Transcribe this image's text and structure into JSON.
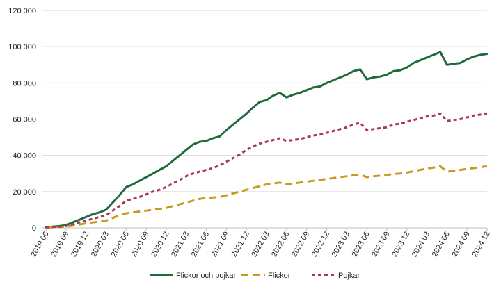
{
  "chart_data": {
    "type": "line",
    "title": "",
    "xlabel": "",
    "ylabel": "",
    "ylim": [
      0,
      120000
    ],
    "yticks": [
      0,
      20000,
      40000,
      60000,
      80000,
      100000,
      120000
    ],
    "ytick_labels": [
      "0",
      "20 000",
      "40 000",
      "60 000",
      "80 000",
      "100 000",
      "120 000"
    ],
    "grid": "horizontal",
    "legend_position": "bottom",
    "x": [
      "2019 06",
      "2019 07",
      "2019 08",
      "2019 09",
      "2019 10",
      "2019 11",
      "2019 12",
      "2020 01",
      "2020 02",
      "2020 03",
      "2020 04",
      "2020 05",
      "2020 06",
      "2020 07",
      "2020 08",
      "2020 09",
      "2020 10",
      "2020 11",
      "2020 12",
      "2021 01",
      "2021 02",
      "2021 03",
      "2021 04",
      "2021 05",
      "2021 06",
      "2021 07",
      "2021 08",
      "2021 09",
      "2021 10",
      "2021 11",
      "2021 12",
      "2022 01",
      "2022 02",
      "2022 03",
      "2022 04",
      "2022 05",
      "2022 06",
      "2022 07",
      "2022 08",
      "2022 09",
      "2022 10",
      "2022 11",
      "2022 12",
      "2023 01",
      "2023 02",
      "2023 03",
      "2023 04",
      "2023 05",
      "2023 06",
      "2023 07",
      "2023 08",
      "2023 09",
      "2023 10",
      "2023 11",
      "2023 12",
      "2024 01",
      "2024 02",
      "2024 03",
      "2024 04",
      "2024 05",
      "2024 06",
      "2024 07",
      "2024 08",
      "2024 09",
      "2024 10",
      "2024 11",
      "2024 12"
    ],
    "xtick_labels": [
      "2019 06",
      "2019 09",
      "2019 12",
      "2020 03",
      "2020 06",
      "2020 09",
      "2020 12",
      "2021 03",
      "2021 06",
      "2021 09",
      "2021 12",
      "2022 03",
      "2022 06",
      "2022 09",
      "2022 12",
      "2023 03",
      "2023 06",
      "2023 09",
      "2023 12",
      "2024 03",
      "2024 06",
      "2024 09",
      "2024 12"
    ],
    "series": [
      {
        "name": "Flickor och pojkar",
        "color": "#1e6b3c",
        "dash": "solid",
        "values": [
          500,
          700,
          1000,
          1500,
          3000,
          4500,
          6000,
          7500,
          8500,
          10000,
          14000,
          18000,
          22500,
          24000,
          26000,
          28000,
          30000,
          32000,
          34000,
          37000,
          40000,
          43000,
          46000,
          47500,
          48000,
          49500,
          50500,
          54000,
          57000,
          60000,
          63000,
          66500,
          69500,
          70500,
          73000,
          74500,
          72000,
          73500,
          74500,
          76000,
          77500,
          78000,
          80000,
          81500,
          83000,
          84500,
          86500,
          87500,
          82000,
          83000,
          83500,
          84500,
          86500,
          87000,
          88500,
          91000,
          92500,
          94000,
          95500,
          97000,
          90000,
          90500,
          91000,
          93000,
          94500,
          95500,
          96000
        ]
      },
      {
        "name": "Flickor",
        "color": "#c79a1e",
        "dash": "dashed",
        "values": [
          200,
          300,
          500,
          700,
          1200,
          1800,
          2500,
          3000,
          3500,
          4000,
          5500,
          7000,
          8000,
          8500,
          9000,
          9500,
          10000,
          10500,
          11000,
          12000,
          13000,
          14000,
          15000,
          16000,
          16500,
          16800,
          17000,
          18000,
          19000,
          20000,
          21000,
          22000,
          23000,
          24000,
          24500,
          25000,
          24000,
          24500,
          25000,
          25500,
          26000,
          26500,
          27000,
          27500,
          28000,
          28500,
          29000,
          29500,
          28000,
          28500,
          28800,
          29200,
          29700,
          30000,
          30500,
          31200,
          32000,
          32700,
          33300,
          34000,
          31000,
          31500,
          32000,
          32500,
          33000,
          33500,
          34000
        ]
      },
      {
        "name": "Pojkar",
        "color": "#a8375e",
        "dash": "dotted",
        "values": [
          300,
          500,
          700,
          1000,
          2000,
          3000,
          4000,
          5000,
          6000,
          7000,
          9500,
          12000,
          15000,
          16000,
          17000,
          18500,
          20000,
          21000,
          22500,
          24500,
          26500,
          28500,
          30000,
          31000,
          32000,
          33000,
          34500,
          36500,
          38500,
          40500,
          43000,
          45000,
          46500,
          47500,
          48500,
          49500,
          48000,
          48500,
          49000,
          50000,
          51000,
          51500,
          52500,
          53500,
          54500,
          55500,
          57000,
          58000,
          54000,
          54500,
          55000,
          55500,
          57000,
          57500,
          58500,
          59500,
          60500,
          61500,
          62000,
          63000,
          59000,
          59500,
          60000,
          61000,
          62000,
          62500,
          63000
        ]
      }
    ]
  }
}
